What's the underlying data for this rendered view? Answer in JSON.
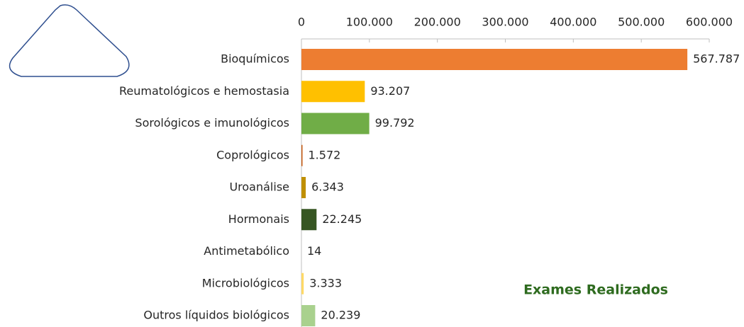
{
  "chart_data": {
    "type": "bar",
    "orientation": "horizontal",
    "title": "Exames Realizados",
    "categories": [
      "Bioquímicos",
      "Reumatológicos e hemostasia",
      "Sorológicos e imunológicos",
      "Coprológicos",
      "Uroanálise",
      "Hormonais",
      "Antimetabólico",
      "Microbiológicos",
      "Outros líquidos biológicos"
    ],
    "values": [
      567787,
      93207,
      99792,
      1572,
      6343,
      22245,
      14,
      3333,
      20239
    ],
    "value_labels": [
      "567.787",
      "93.207",
      "99.792",
      "1.572",
      "6.343",
      "22.245",
      "14",
      "3.333",
      "20.239"
    ],
    "colors": [
      "#ed7d31",
      "#ffc000",
      "#70ad47",
      "#c55a11",
      "#bf8f00",
      "#375623",
      "#f2f2f2",
      "#ffd966",
      "#a9d18e"
    ],
    "xlim": [
      0,
      600000
    ],
    "xticks": [
      0,
      {
        "value": 100000,
        "label": "100.000"
      },
      {
        "value": 200000,
        "label": "200.000"
      },
      {
        "value": 300000,
        "label": "300.000"
      },
      {
        "value": 400000,
        "label": "400.000"
      },
      {
        "value": 500000,
        "label": "500.000"
      },
      {
        "value": 600000,
        "label": "600.000"
      }
    ],
    "grid": false
  }
}
